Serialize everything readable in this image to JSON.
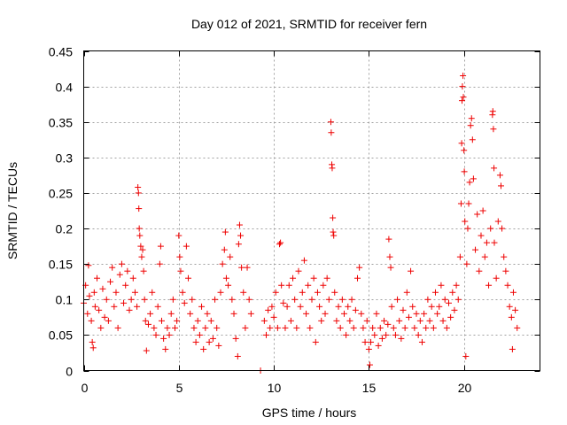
{
  "chart_data": {
    "type": "scatter",
    "title": "Day 012 of 2021, SRMTID for receiver fern",
    "xlabel": "GPS time / hours",
    "ylabel": "SRMTID / TECUs",
    "xlim": [
      0,
      24
    ],
    "ylim": [
      0,
      0.45
    ],
    "xticks": [
      0,
      5,
      10,
      15,
      20
    ],
    "xtick_labels": [
      "0",
      "5",
      "10",
      "15",
      "20"
    ],
    "yticks": [
      0,
      0.05,
      0.1,
      0.15,
      0.2,
      0.25,
      0.3,
      0.35,
      0.4,
      0.45
    ],
    "ytick_labels": [
      "0",
      "0.05",
      "0.1",
      "0.15",
      "0.2",
      "0.25",
      "0.3",
      "0.35",
      "0.4",
      "0.45"
    ],
    "grid": true,
    "marker": "plus",
    "color": "#ee0000",
    "series": [
      {
        "name": "SRMTID",
        "points": [
          [
            0.0,
            0.095
          ],
          [
            0.1,
            0.12
          ],
          [
            0.2,
            0.08
          ],
          [
            0.25,
            0.148
          ],
          [
            0.3,
            0.105
          ],
          [
            0.4,
            0.07
          ],
          [
            0.45,
            0.04
          ],
          [
            0.5,
            0.032
          ],
          [
            0.55,
            0.11
          ],
          [
            0.6,
            0.09
          ],
          [
            0.7,
            0.13
          ],
          [
            0.8,
            0.085
          ],
          [
            0.9,
            0.06
          ],
          [
            1.0,
            0.115
          ],
          [
            1.1,
            0.075
          ],
          [
            1.2,
            0.1
          ],
          [
            1.3,
            0.07
          ],
          [
            1.4,
            0.125
          ],
          [
            1.5,
            0.145
          ],
          [
            1.6,
            0.09
          ],
          [
            1.7,
            0.11
          ],
          [
            1.8,
            0.06
          ],
          [
            1.9,
            0.135
          ],
          [
            2.0,
            0.15
          ],
          [
            2.1,
            0.095
          ],
          [
            2.2,
            0.12
          ],
          [
            2.3,
            0.14
          ],
          [
            2.4,
            0.085
          ],
          [
            2.5,
            0.1
          ],
          [
            2.6,
            0.13
          ],
          [
            2.7,
            0.11
          ],
          [
            2.8,
            0.09
          ],
          [
            2.85,
            0.258
          ],
          [
            2.88,
            0.25
          ],
          [
            2.9,
            0.228
          ],
          [
            2.92,
            0.2
          ],
          [
            2.95,
            0.19
          ],
          [
            3.0,
            0.175
          ],
          [
            3.05,
            0.16
          ],
          [
            3.1,
            0.17
          ],
          [
            3.15,
            0.14
          ],
          [
            3.2,
            0.1
          ],
          [
            3.25,
            0.07
          ],
          [
            3.3,
            0.028
          ],
          [
            3.4,
            0.065
          ],
          [
            3.5,
            0.08
          ],
          [
            3.6,
            0.11
          ],
          [
            3.7,
            0.06
          ],
          [
            3.8,
            0.05
          ],
          [
            3.9,
            0.09
          ],
          [
            4.0,
            0.15
          ],
          [
            4.05,
            0.175
          ],
          [
            4.1,
            0.07
          ],
          [
            4.2,
            0.045
          ],
          [
            4.3,
            0.03
          ],
          [
            4.4,
            0.06
          ],
          [
            4.5,
            0.05
          ],
          [
            4.6,
            0.08
          ],
          [
            4.7,
            0.1
          ],
          [
            4.8,
            0.06
          ],
          [
            4.9,
            0.07
          ],
          [
            5.0,
            0.19
          ],
          [
            5.05,
            0.16
          ],
          [
            5.1,
            0.14
          ],
          [
            5.2,
            0.11
          ],
          [
            5.3,
            0.095
          ],
          [
            5.4,
            0.175
          ],
          [
            5.5,
            0.13
          ],
          [
            5.6,
            0.08
          ],
          [
            5.7,
            0.1
          ],
          [
            5.8,
            0.06
          ],
          [
            5.9,
            0.04
          ],
          [
            6.0,
            0.07
          ],
          [
            6.1,
            0.05
          ],
          [
            6.2,
            0.09
          ],
          [
            6.3,
            0.03
          ],
          [
            6.4,
            0.06
          ],
          [
            6.5,
            0.08
          ],
          [
            6.6,
            0.04
          ],
          [
            6.7,
            0.07
          ],
          [
            6.8,
            0.045
          ],
          [
            6.9,
            0.1
          ],
          [
            7.0,
            0.06
          ],
          [
            7.1,
            0.035
          ],
          [
            7.2,
            0.11
          ],
          [
            7.3,
            0.15
          ],
          [
            7.4,
            0.17
          ],
          [
            7.45,
            0.195
          ],
          [
            7.5,
            0.13
          ],
          [
            7.6,
            0.12
          ],
          [
            7.7,
            0.16
          ],
          [
            7.8,
            0.1
          ],
          [
            7.9,
            0.08
          ],
          [
            8.0,
            0.045
          ],
          [
            8.1,
            0.02
          ],
          [
            8.15,
            0.178
          ],
          [
            8.2,
            0.205
          ],
          [
            8.25,
            0.19
          ],
          [
            8.3,
            0.145
          ],
          [
            8.4,
            0.11
          ],
          [
            8.5,
            0.06
          ],
          [
            8.6,
            0.145
          ],
          [
            8.7,
            0.1
          ],
          [
            8.8,
            0.08
          ],
          [
            9.3,
            0.0
          ],
          [
            9.5,
            0.07
          ],
          [
            9.6,
            0.05
          ],
          [
            9.7,
            0.085
          ],
          [
            9.8,
            0.06
          ],
          [
            9.9,
            0.09
          ],
          [
            10.0,
            0.075
          ],
          [
            10.1,
            0.11
          ],
          [
            10.2,
            0.06
          ],
          [
            10.3,
            0.178
          ],
          [
            10.35,
            0.18
          ],
          [
            10.4,
            0.12
          ],
          [
            10.5,
            0.095
          ],
          [
            10.6,
            0.06
          ],
          [
            10.7,
            0.09
          ],
          [
            10.8,
            0.12
          ],
          [
            10.9,
            0.07
          ],
          [
            11.0,
            0.13
          ],
          [
            11.1,
            0.1
          ],
          [
            11.2,
            0.06
          ],
          [
            11.3,
            0.14
          ],
          [
            11.4,
            0.09
          ],
          [
            11.5,
            0.11
          ],
          [
            11.6,
            0.155
          ],
          [
            11.7,
            0.08
          ],
          [
            11.8,
            0.12
          ],
          [
            11.9,
            0.06
          ],
          [
            12.0,
            0.1
          ],
          [
            12.1,
            0.13
          ],
          [
            12.2,
            0.04
          ],
          [
            12.3,
            0.11
          ],
          [
            12.4,
            0.09
          ],
          [
            12.5,
            0.07
          ],
          [
            12.6,
            0.12
          ],
          [
            12.7,
            0.08
          ],
          [
            12.8,
            0.13
          ],
          [
            12.9,
            0.1
          ],
          [
            13.0,
            0.35
          ],
          [
            13.02,
            0.335
          ],
          [
            13.05,
            0.29
          ],
          [
            13.07,
            0.285
          ],
          [
            13.1,
            0.215
          ],
          [
            13.12,
            0.195
          ],
          [
            13.15,
            0.19
          ],
          [
            13.2,
            0.11
          ],
          [
            13.3,
            0.07
          ],
          [
            13.4,
            0.09
          ],
          [
            13.5,
            0.06
          ],
          [
            13.6,
            0.1
          ],
          [
            13.7,
            0.08
          ],
          [
            13.8,
            0.05
          ],
          [
            13.9,
            0.09
          ],
          [
            14.0,
            0.07
          ],
          [
            14.1,
            0.1
          ],
          [
            14.2,
            0.06
          ],
          [
            14.3,
            0.085
          ],
          [
            14.4,
            0.13
          ],
          [
            14.5,
            0.145
          ],
          [
            14.6,
            0.08
          ],
          [
            14.7,
            0.06
          ],
          [
            14.8,
            0.04
          ],
          [
            14.9,
            0.07
          ],
          [
            15.0,
            0.03
          ],
          [
            15.05,
            0.008
          ],
          [
            15.1,
            0.04
          ],
          [
            15.2,
            0.06
          ],
          [
            15.3,
            0.05
          ],
          [
            15.4,
            0.08
          ],
          [
            15.5,
            0.035
          ],
          [
            15.6,
            0.06
          ],
          [
            15.7,
            0.045
          ],
          [
            15.8,
            0.07
          ],
          [
            15.9,
            0.05
          ],
          [
            16.0,
            0.065
          ],
          [
            16.05,
            0.185
          ],
          [
            16.1,
            0.16
          ],
          [
            16.15,
            0.145
          ],
          [
            16.2,
            0.09
          ],
          [
            16.3,
            0.06
          ],
          [
            16.4,
            0.05
          ],
          [
            16.5,
            0.1
          ],
          [
            16.6,
            0.07
          ],
          [
            16.7,
            0.045
          ],
          [
            16.8,
            0.085
          ],
          [
            16.9,
            0.06
          ],
          [
            17.0,
            0.11
          ],
          [
            17.1,
            0.075
          ],
          [
            17.2,
            0.14
          ],
          [
            17.3,
            0.09
          ],
          [
            17.4,
            0.06
          ],
          [
            17.5,
            0.08
          ],
          [
            17.6,
            0.05
          ],
          [
            17.7,
            0.07
          ],
          [
            17.8,
            0.04
          ],
          [
            17.9,
            0.08
          ],
          [
            18.0,
            0.06
          ],
          [
            18.1,
            0.1
          ],
          [
            18.2,
            0.07
          ],
          [
            18.3,
            0.09
          ],
          [
            18.4,
            0.06
          ],
          [
            18.5,
            0.11
          ],
          [
            18.6,
            0.08
          ],
          [
            18.7,
            0.09
          ],
          [
            18.8,
            0.12
          ],
          [
            18.9,
            0.07
          ],
          [
            19.0,
            0.1
          ],
          [
            19.1,
            0.06
          ],
          [
            19.2,
            0.095
          ],
          [
            19.3,
            0.075
          ],
          [
            19.4,
            0.11
          ],
          [
            19.5,
            0.085
          ],
          [
            19.6,
            0.12
          ],
          [
            19.7,
            0.1
          ],
          [
            19.8,
            0.16
          ],
          [
            19.85,
            0.235
          ],
          [
            19.88,
            0.32
          ],
          [
            19.9,
            0.38
          ],
          [
            19.92,
            0.4
          ],
          [
            19.95,
            0.415
          ],
          [
            19.97,
            0.385
          ],
          [
            20.0,
            0.31
          ],
          [
            20.02,
            0.28
          ],
          [
            20.05,
            0.21
          ],
          [
            20.1,
            0.02
          ],
          [
            20.15,
            0.15
          ],
          [
            20.2,
            0.2
          ],
          [
            20.25,
            0.235
          ],
          [
            20.3,
            0.265
          ],
          [
            20.35,
            0.345
          ],
          [
            20.4,
            0.355
          ],
          [
            20.45,
            0.325
          ],
          [
            20.5,
            0.27
          ],
          [
            20.6,
            0.17
          ],
          [
            20.7,
            0.22
          ],
          [
            20.8,
            0.14
          ],
          [
            20.9,
            0.19
          ],
          [
            21.0,
            0.225
          ],
          [
            21.1,
            0.16
          ],
          [
            21.2,
            0.18
          ],
          [
            21.3,
            0.12
          ],
          [
            21.4,
            0.2
          ],
          [
            21.5,
            0.36
          ],
          [
            21.52,
            0.365
          ],
          [
            21.55,
            0.34
          ],
          [
            21.58,
            0.285
          ],
          [
            21.6,
            0.18
          ],
          [
            21.7,
            0.13
          ],
          [
            21.8,
            0.21
          ],
          [
            21.9,
            0.275
          ],
          [
            21.95,
            0.26
          ],
          [
            22.0,
            0.2
          ],
          [
            22.1,
            0.16
          ],
          [
            22.2,
            0.14
          ],
          [
            22.3,
            0.12
          ],
          [
            22.4,
            0.09
          ],
          [
            22.5,
            0.075
          ],
          [
            22.55,
            0.03
          ],
          [
            22.6,
            0.11
          ],
          [
            22.7,
            0.085
          ],
          [
            22.8,
            0.06
          ]
        ]
      }
    ]
  }
}
